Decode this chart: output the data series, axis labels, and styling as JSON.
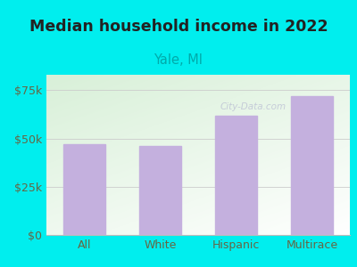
{
  "title": "Median household income in 2022",
  "subtitle": "Yale, MI",
  "categories": [
    "All",
    "White",
    "Hispanic",
    "Multirace"
  ],
  "values": [
    47000,
    46000,
    62000,
    72000
  ],
  "bar_color": "#c4b0de",
  "title_fontsize": 12.5,
  "title_color": "#222222",
  "subtitle_fontsize": 10.5,
  "subtitle_color": "#00aaaa",
  "tick_label_color": "#666644",
  "background_color": "#00eeee",
  "plot_bg_top_left": "#d8f0d8",
  "plot_bg_bottom_right": "#ffffff",
  "ylim": [
    0,
    83000
  ],
  "yticks": [
    0,
    25000,
    50000,
    75000
  ],
  "ytick_labels": [
    "$0",
    "$25k",
    "$50k",
    "$75k"
  ],
  "watermark": "City-Data.com",
  "watermark_color": "#aaaacc",
  "watermark_alpha": 0.55
}
